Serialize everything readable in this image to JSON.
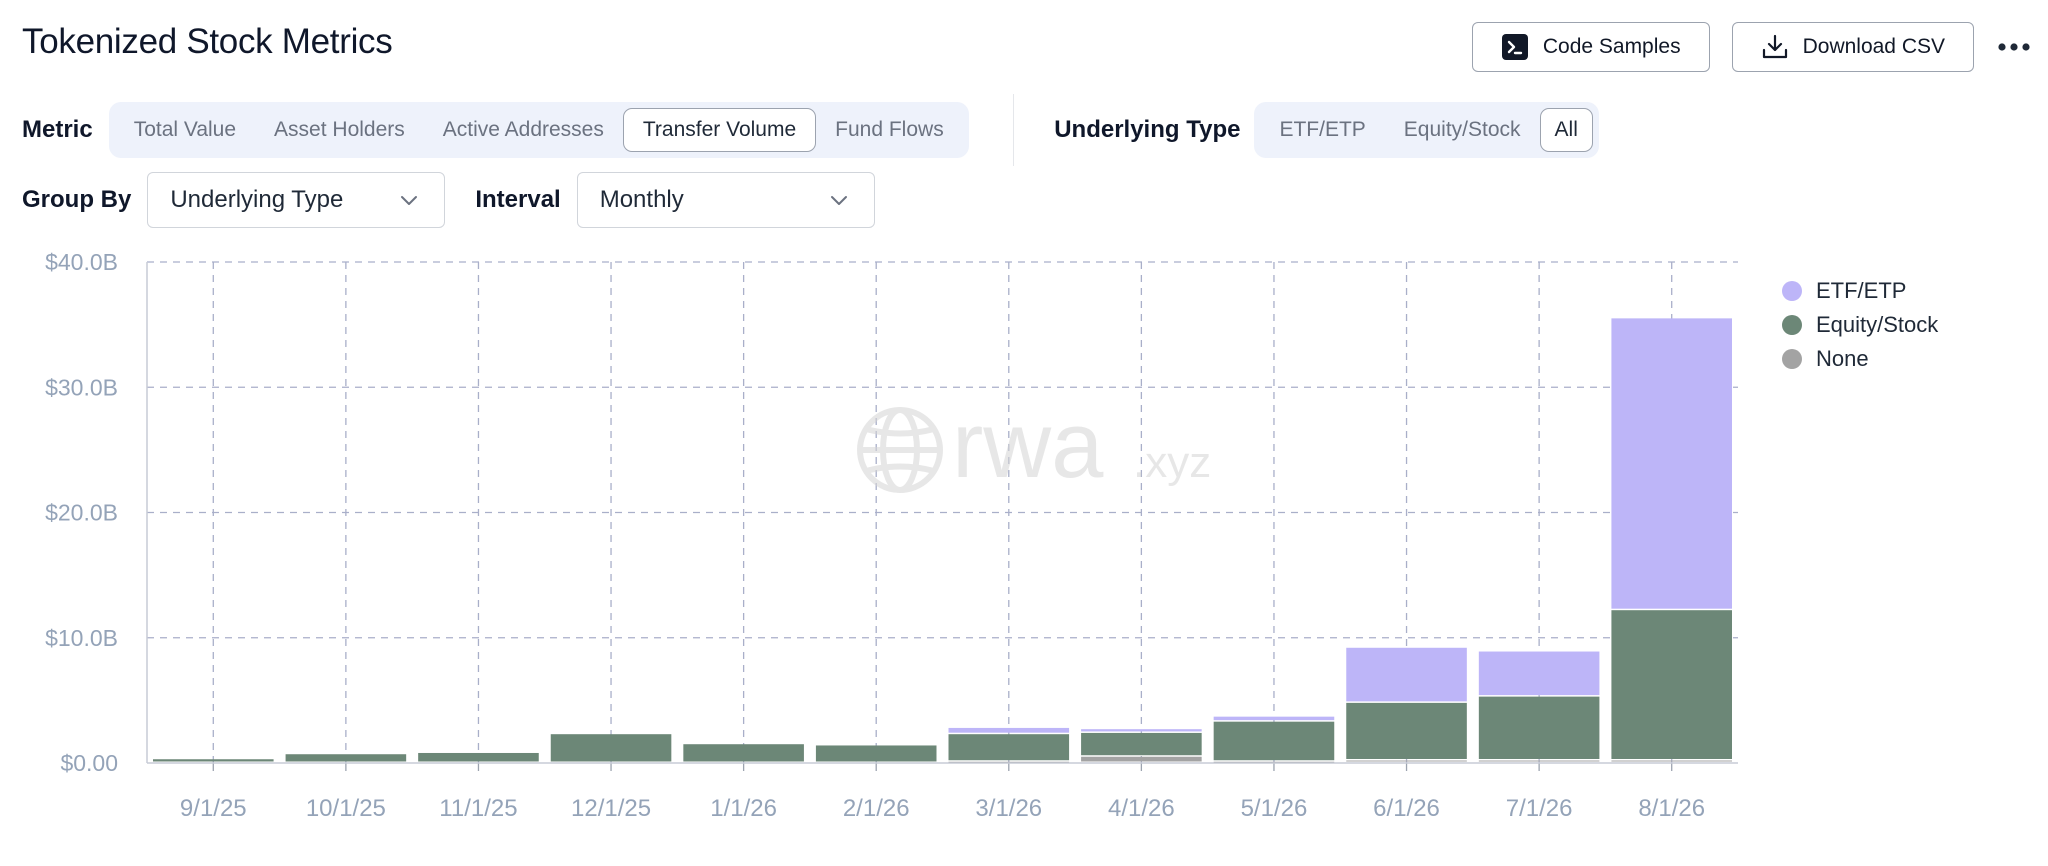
{
  "page": {
    "title": "Tokenized Stock Metrics"
  },
  "toolbar": {
    "code_samples_label": "Code Samples",
    "download_csv_label": "Download CSV"
  },
  "filters": {
    "metric_label": "Metric",
    "metric_options": [
      "Total Value",
      "Asset Holders",
      "Active Addresses",
      "Transfer Volume",
      "Fund Flows"
    ],
    "metric_selected": "Transfer Volume",
    "underlying_type_label": "Underlying Type",
    "underlying_type_options": [
      "ETF/ETP",
      "Equity/Stock",
      "All"
    ],
    "underlying_type_selected": "All",
    "group_by_label": "Group By",
    "group_by_value": "Underlying Type",
    "interval_label": "Interval",
    "interval_value": "Monthly"
  },
  "watermark": {
    "brand": "rwa",
    "suffix": ".xyz"
  },
  "colors": {
    "etf": "#bdb5f8",
    "equity": "#6c8777",
    "none": "#a3a3a3",
    "grid": "#a9afc9",
    "tick_text": "#94a3b8"
  },
  "chart_data": {
    "type": "bar",
    "stacked": true,
    "categories": [
      "9/1/25",
      "10/1/25",
      "11/1/25",
      "12/1/25",
      "1/1/26",
      "2/1/26",
      "3/1/26",
      "4/1/26",
      "5/1/26",
      "6/1/26",
      "7/1/26",
      "8/1/26"
    ],
    "series": [
      {
        "name": "None",
        "color_key": "none",
        "values": [
          0,
          0,
          0,
          0,
          0,
          0,
          0.1,
          0.5,
          0.1,
          0.2,
          0.2,
          0.2
        ]
      },
      {
        "name": "Equity/Stock",
        "color_key": "equity",
        "values": [
          0.3,
          0.7,
          0.8,
          2.3,
          1.5,
          1.4,
          2.2,
          1.9,
          3.2,
          4.6,
          5.1,
          12.0
        ]
      },
      {
        "name": "ETF/ETP",
        "color_key": "etf",
        "values": [
          0,
          0,
          0,
          0,
          0,
          0,
          0.5,
          0.3,
          0.4,
          4.4,
          3.6,
          23.3
        ]
      }
    ],
    "units": "$B",
    "ylim": [
      0,
      40
    ],
    "yticks": [
      0,
      10,
      20,
      30,
      40
    ],
    "ytick_labels": [
      "$0.00",
      "$10.0B",
      "$20.0B",
      "$30.0B",
      "$40.0B"
    ],
    "legend": {
      "position": "right",
      "entries": [
        "ETF/ETP",
        "Equity/Stock",
        "None"
      ]
    },
    "grid": true,
    "title": "",
    "xlabel": "",
    "ylabel": ""
  }
}
